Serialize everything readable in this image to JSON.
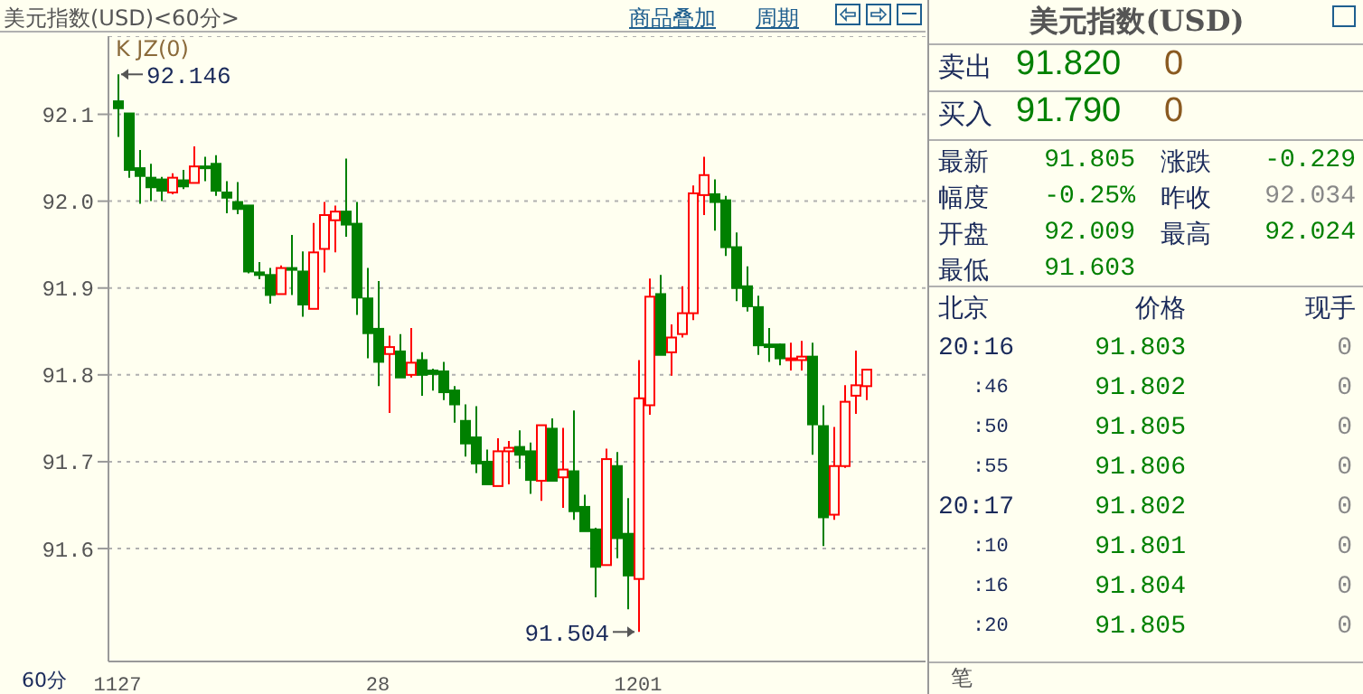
{
  "chart_data": [
    {
      "type": "candlestick",
      "title": "美元指数(USD)<60分>",
      "categories": [
        "1127",
        null,
        null,
        null,
        null,
        null,
        null,
        null,
        null,
        null,
        null,
        null,
        null,
        null,
        null,
        null,
        null,
        null,
        null,
        null,
        null,
        null,
        null,
        null,
        "28",
        null,
        null,
        null,
        null,
        null,
        null,
        null,
        null,
        null,
        null,
        null,
        null,
        null,
        null,
        null,
        null,
        null,
        null,
        null,
        null,
        null,
        null,
        null,
        "1201",
        null,
        null,
        null,
        null,
        null,
        null,
        null,
        null,
        null,
        null,
        null,
        null,
        null,
        null,
        null,
        null,
        null,
        null,
        null,
        null,
        null
      ],
      "ohlc": [
        [
          92.115,
          92.146,
          92.074,
          92.107
        ],
        [
          92.101,
          92.101,
          92.027,
          92.036
        ],
        [
          92.038,
          92.059,
          91.997,
          92.029
        ],
        [
          92.027,
          92.043,
          92.0,
          92.016
        ],
        [
          92.025,
          92.028,
          92.0,
          92.012
        ],
        [
          92.01,
          92.032,
          92.008,
          92.027
        ],
        [
          92.024,
          92.036,
          92.014,
          92.017
        ],
        [
          92.021,
          92.063,
          92.021,
          92.04
        ],
        [
          92.04,
          92.051,
          92.023,
          92.038
        ],
        [
          92.043,
          92.053,
          92.006,
          92.012
        ],
        [
          92.01,
          92.023,
          91.986,
          92.004
        ],
        [
          91.999,
          92.022,
          91.985,
          91.991
        ],
        [
          91.995,
          91.995,
          91.917,
          91.919
        ],
        [
          91.918,
          91.93,
          91.91,
          91.915
        ],
        [
          91.915,
          91.923,
          91.882,
          91.892
        ],
        [
          91.893,
          91.926,
          91.893,
          91.923
        ],
        [
          91.923,
          91.961,
          91.892,
          91.922
        ],
        [
          91.919,
          91.942,
          91.867,
          91.881
        ],
        [
          91.876,
          91.975,
          91.876,
          91.941
        ],
        [
          91.945,
          91.999,
          91.918,
          91.984
        ],
        [
          91.978,
          91.995,
          91.941,
          91.988
        ],
        [
          91.988,
          92.049,
          91.959,
          91.973
        ],
        [
          91.974,
          91.999,
          91.869,
          91.889
        ],
        [
          91.888,
          91.923,
          91.819,
          91.848
        ],
        [
          91.853,
          91.908,
          91.787,
          91.815
        ],
        [
          91.824,
          91.845,
          91.756,
          91.832
        ],
        [
          91.827,
          91.847,
          91.797,
          91.797
        ],
        [
          91.8,
          91.854,
          91.797,
          91.814
        ],
        [
          91.817,
          91.826,
          91.776,
          91.8
        ],
        [
          91.805,
          91.807,
          91.782,
          91.801
        ],
        [
          91.804,
          91.815,
          91.771,
          91.78
        ],
        [
          91.782,
          91.787,
          91.745,
          91.766
        ],
        [
          91.747,
          91.766,
          91.706,
          91.721
        ],
        [
          91.728,
          91.764,
          91.687,
          91.698
        ],
        [
          91.7,
          91.714,
          91.674,
          91.674
        ],
        [
          91.672,
          91.727,
          91.672,
          91.712
        ],
        [
          91.712,
          91.724,
          91.674,
          91.716
        ],
        [
          91.717,
          91.736,
          91.692,
          91.708
        ],
        [
          91.712,
          91.722,
          91.663,
          91.679
        ],
        [
          91.678,
          91.742,
          91.655,
          91.742
        ],
        [
          91.738,
          91.75,
          91.678,
          91.678
        ],
        [
          91.682,
          91.739,
          91.647,
          91.691
        ],
        [
          91.689,
          91.759,
          91.633,
          91.643
        ],
        [
          91.648,
          91.662,
          91.62,
          91.62
        ],
        [
          91.622,
          91.624,
          91.544,
          91.579
        ],
        [
          91.581,
          91.715,
          91.581,
          91.703
        ],
        [
          91.695,
          91.711,
          91.589,
          91.612
        ],
        [
          91.617,
          91.658,
          91.53,
          91.569
        ],
        [
          91.565,
          91.817,
          91.504,
          91.773
        ],
        [
          91.765,
          91.911,
          91.754,
          91.89
        ],
        [
          91.893,
          91.915,
          91.823,
          91.823
        ],
        [
          91.826,
          91.858,
          91.799,
          91.843
        ],
        [
          91.847,
          91.902,
          91.843,
          91.871
        ],
        [
          91.871,
          92.018,
          91.863,
          92.009
        ],
        [
          92.007,
          92.051,
          91.984,
          92.03
        ],
        [
          92.008,
          92.025,
          91.966,
          91.999
        ],
        [
          92.001,
          92.006,
          91.937,
          91.947
        ],
        [
          91.947,
          91.964,
          91.885,
          91.9
        ],
        [
          91.902,
          91.925,
          91.873,
          91.879
        ],
        [
          91.878,
          91.891,
          91.823,
          91.834
        ],
        [
          91.835,
          91.854,
          91.815,
          91.832
        ],
        [
          91.835,
          91.836,
          91.811,
          91.819
        ],
        [
          91.817,
          91.837,
          91.805,
          91.819
        ],
        [
          91.817,
          91.839,
          91.805,
          91.821
        ],
        [
          91.821,
          91.837,
          91.708,
          91.743
        ],
        [
          91.741,
          91.765,
          91.603,
          91.636
        ],
        [
          91.639,
          91.74,
          91.633,
          91.695
        ],
        [
          91.695,
          91.788,
          91.693,
          91.769
        ],
        [
          91.776,
          91.828,
          91.755,
          91.788
        ],
        [
          91.787,
          91.807,
          91.771,
          91.806
        ]
      ],
      "ylim": [
        91.47,
        92.19
      ],
      "yticks": [
        {
          "value": 91.6,
          "label": "91.6"
        },
        {
          "value": 91.7,
          "label": "91.7"
        },
        {
          "value": 91.8,
          "label": "91.8"
        },
        {
          "value": 91.9,
          "label": "91.9"
        },
        {
          "value": 92,
          "label": "92.0"
        },
        {
          "value": 92.1,
          "label": "92.1"
        }
      ],
      "grid": "y",
      "annotations": [
        "K JZ(0)",
        "60分",
        "商品叠加",
        "周期",
        {
          "text": "92.146",
          "x": "1127",
          "y": 92.146
        },
        {
          "text": "91.504",
          "x": "1201",
          "y": 91.504
        }
      ]
    },
    {
      "type": "other",
      "title": "美元指数(USD)",
      "annotations": [
        "卖出",
        "91.820",
        "0",
        "买入",
        "91.790",
        "0",
        "最新",
        "91.805",
        "涨跌",
        "-0.229",
        "幅度",
        "-0.25%",
        "昨收",
        "92.034",
        "开盘",
        "92.009",
        "最高",
        "92.024",
        "最低",
        "91.603",
        "北京",
        "价格",
        "现手",
        "20:16",
        "91.803",
        "0",
        ":46",
        "91.802",
        "0",
        ":50",
        "91.805",
        "0",
        ":55",
        "91.806",
        "0",
        "20:17",
        "91.802",
        "0",
        ":10",
        "91.801",
        "0",
        ":16",
        "91.804",
        "0",
        ":20",
        "91.805",
        "0",
        "笔"
      ]
    }
  ]
}
